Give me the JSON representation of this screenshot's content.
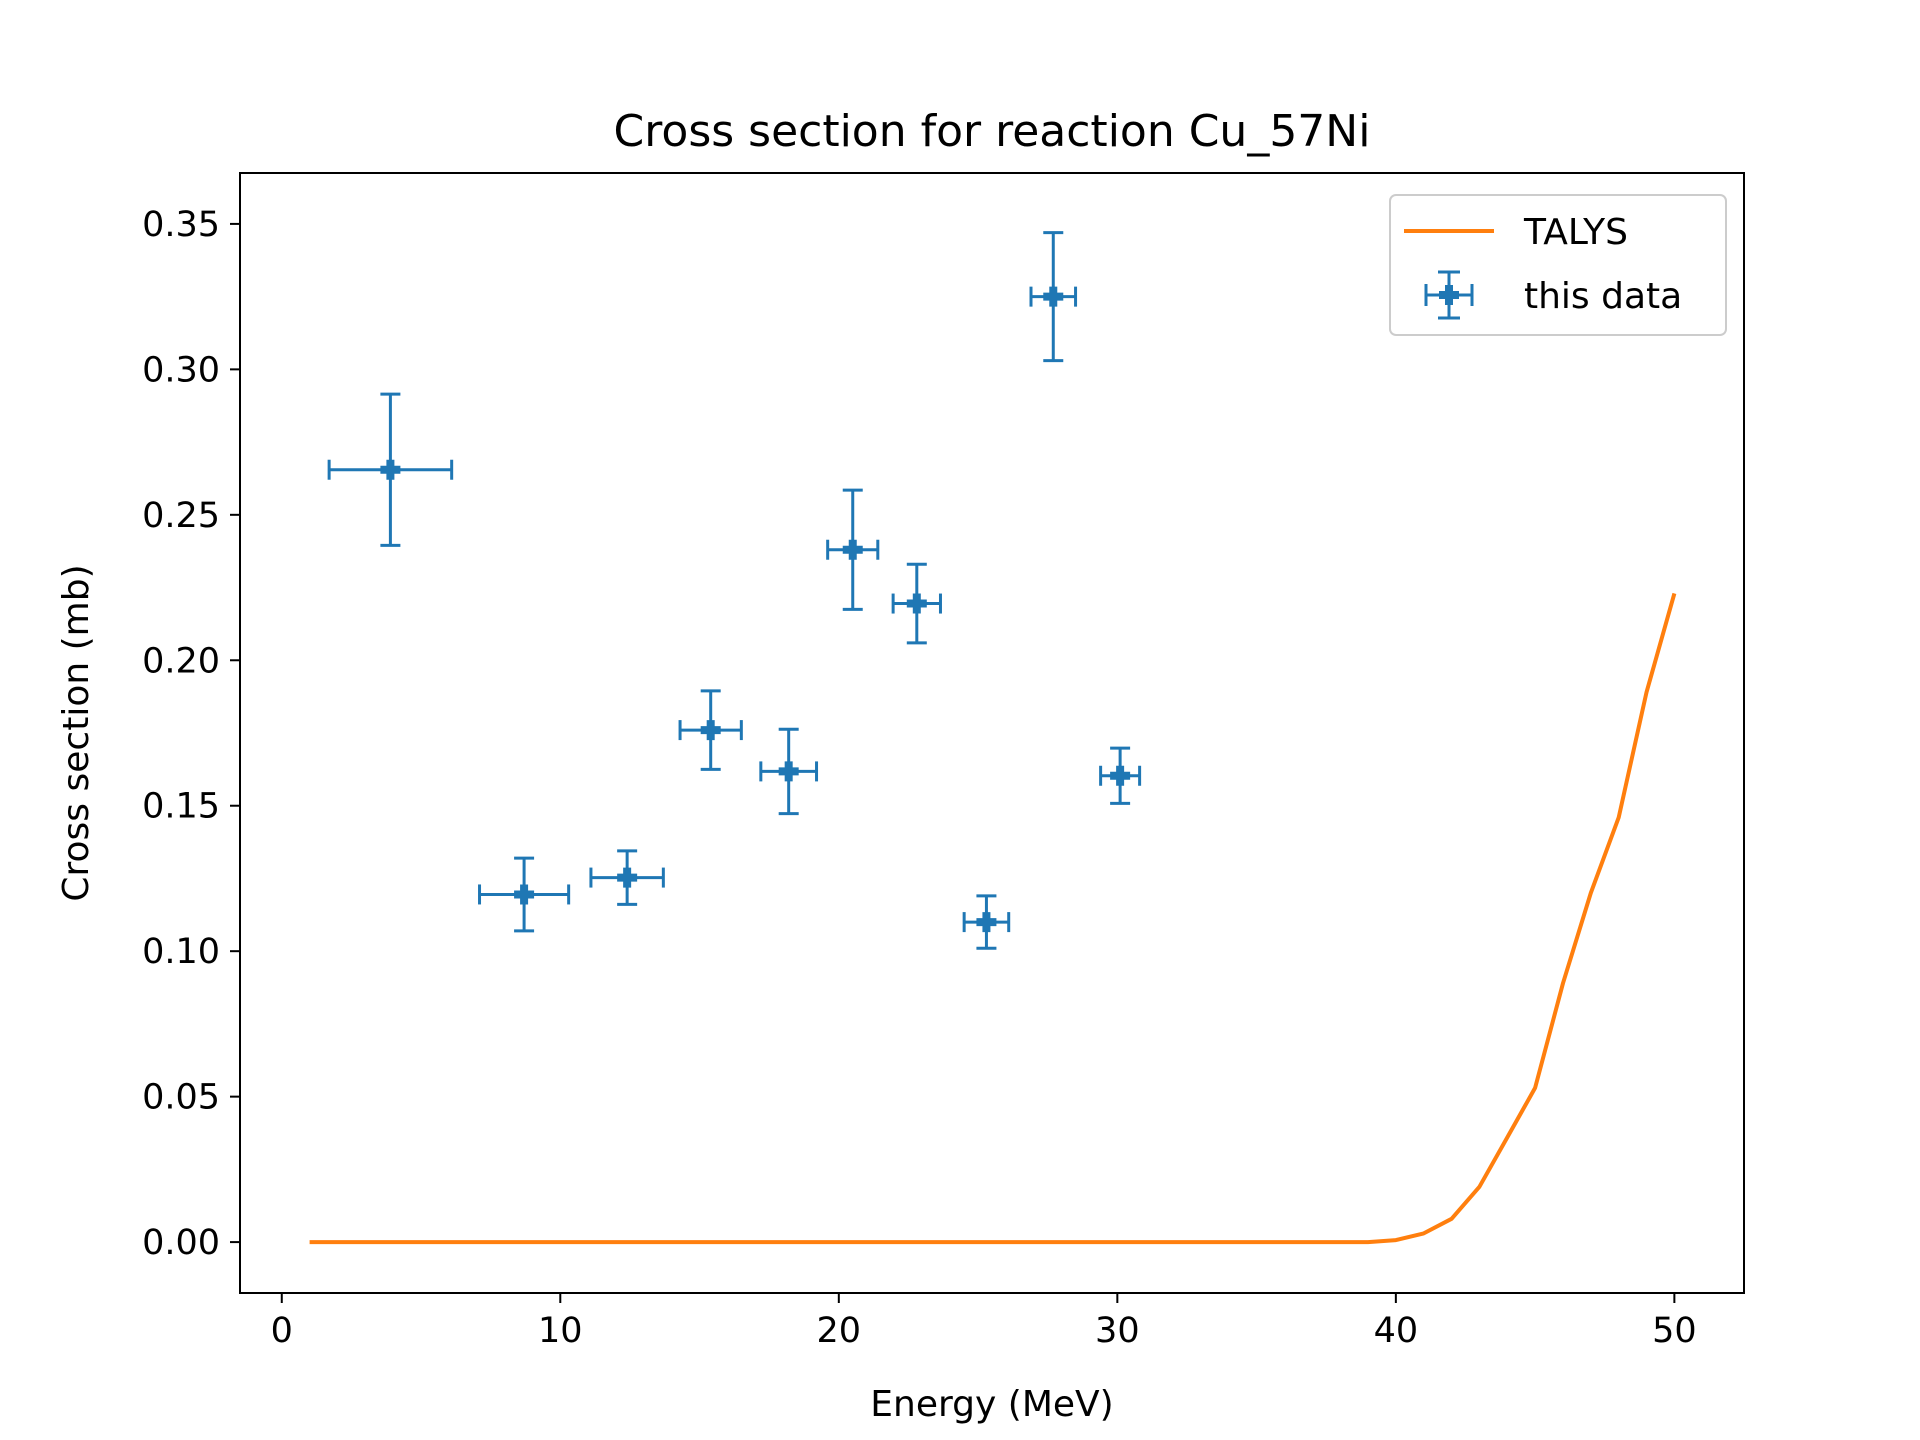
{
  "chart_data": {
    "type": "scatter",
    "title": "Cross section for reaction Cu_57Ni",
    "xlabel": "Energy (MeV)",
    "ylabel": "Cross section (mb)",
    "xlim": [
      -1.5,
      52.5
    ],
    "ylim": [
      -0.0175,
      0.3675
    ],
    "xticks": [
      0,
      10,
      20,
      30,
      40,
      50
    ],
    "xtick_labels": [
      "0",
      "10",
      "20",
      "30",
      "40",
      "50"
    ],
    "yticks": [
      0.0,
      0.05,
      0.1,
      0.15,
      0.2,
      0.25,
      0.3,
      0.35
    ],
    "ytick_labels": [
      "0.00",
      "0.05",
      "0.10",
      "0.15",
      "0.20",
      "0.25",
      "0.30",
      "0.35"
    ],
    "legend_position": "top-right",
    "grid": false,
    "series": [
      {
        "name": "TALYS",
        "kind": "line",
        "color": "#ff7f0e",
        "x": [
          1,
          5,
          10,
          15,
          20,
          25,
          30,
          35,
          39,
          40,
          41,
          42,
          43,
          44,
          45,
          46,
          47,
          48,
          49,
          50
        ],
        "y": [
          0,
          0,
          0,
          0,
          0,
          0,
          0,
          0,
          0,
          0.0007,
          0.003,
          0.008,
          0.019,
          0.036,
          0.053,
          0.089,
          0.12,
          0.146,
          0.189,
          0.223
        ]
      },
      {
        "name": "this data",
        "kind": "errorbar",
        "color": "#1f77b4",
        "points": [
          {
            "x": 3.9,
            "y": 0.2655,
            "xerr": 2.2,
            "yerr": 0.026
          },
          {
            "x": 8.7,
            "y": 0.1195,
            "xerr": 1.6,
            "yerr": 0.0125
          },
          {
            "x": 12.4,
            "y": 0.1253,
            "xerr": 1.3,
            "yerr": 0.0092
          },
          {
            "x": 15.4,
            "y": 0.176,
            "xerr": 1.1,
            "yerr": 0.0135
          },
          {
            "x": 18.2,
            "y": 0.1618,
            "xerr": 1.0,
            "yerr": 0.0145
          },
          {
            "x": 20.5,
            "y": 0.238,
            "xerr": 0.9,
            "yerr": 0.0205
          },
          {
            "x": 22.8,
            "y": 0.2195,
            "xerr": 0.85,
            "yerr": 0.0135
          },
          {
            "x": 25.3,
            "y": 0.11,
            "xerr": 0.8,
            "yerr": 0.009
          },
          {
            "x": 27.7,
            "y": 0.325,
            "xerr": 0.8,
            "yerr": 0.022
          },
          {
            "x": 30.1,
            "y": 0.1603,
            "xerr": 0.7,
            "yerr": 0.0095
          }
        ]
      }
    ]
  }
}
